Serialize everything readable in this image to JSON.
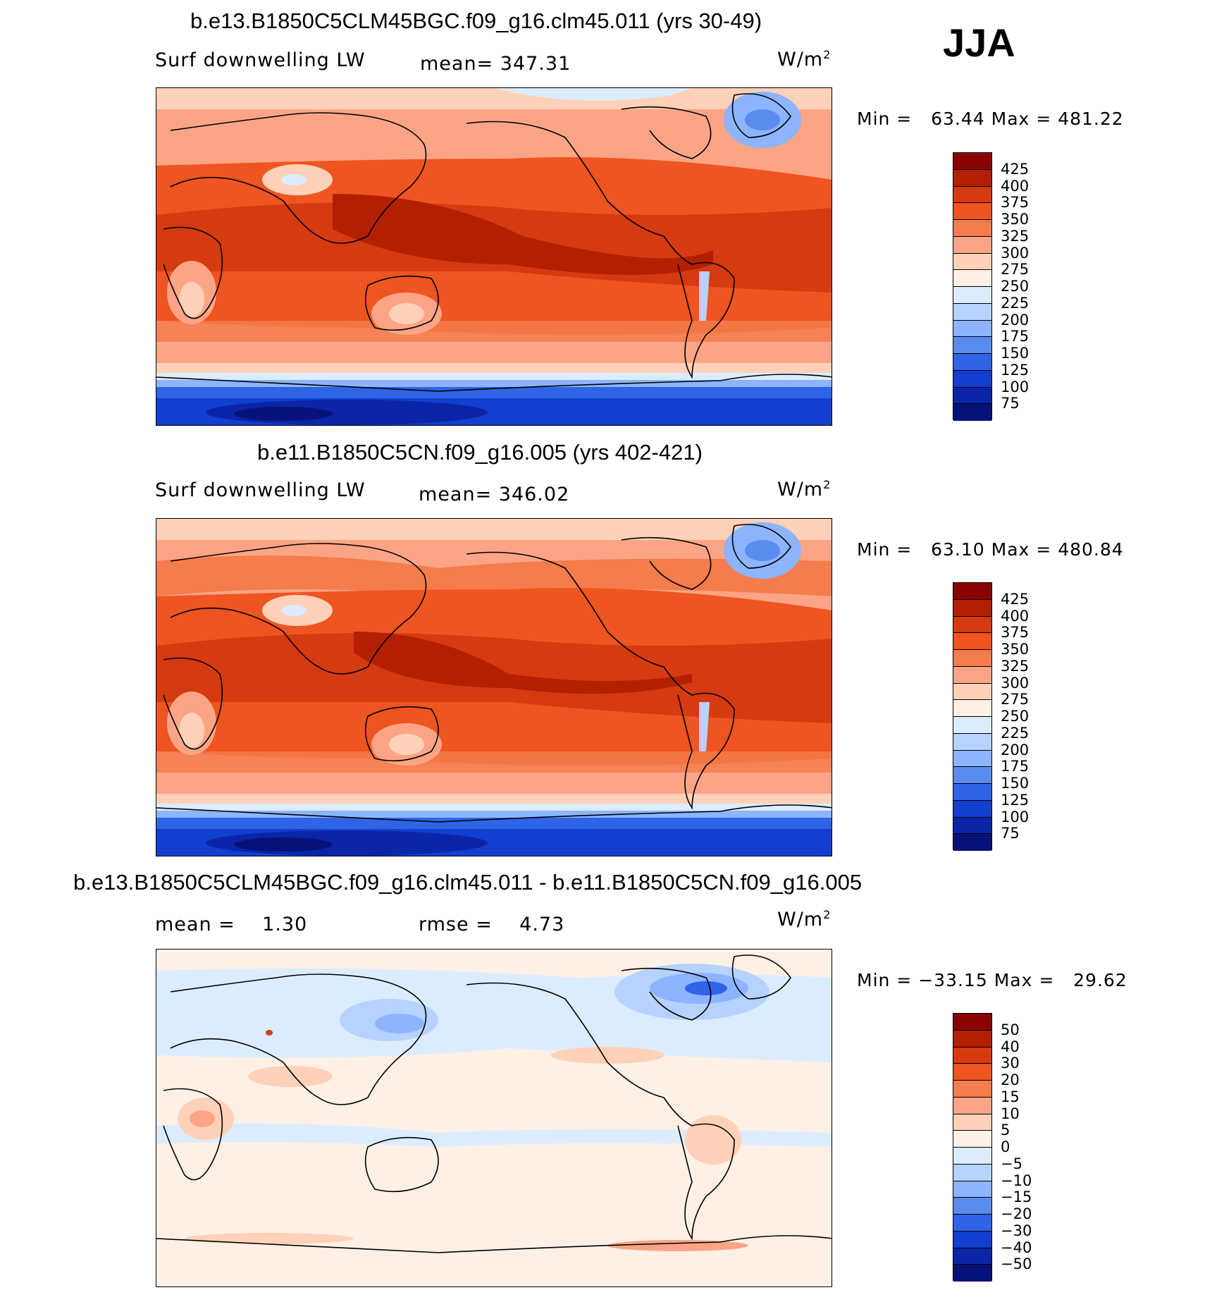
{
  "season": "JJA",
  "panels": [
    {
      "title": "b.e13.B1850C5CLM45BGC.f09_g16.clm45.011 (yrs 30-49)",
      "left_label": "Surf downwelling LW",
      "center_label": "mean= 347.31",
      "units_base": "W/m",
      "units_exp": "2",
      "min_label": "Min =",
      "min_value": "63.44",
      "max_label": "Max =",
      "max_value": "481.22",
      "colorbar": {
        "levels": [
          "425",
          "400",
          "375",
          "350",
          "325",
          "300",
          "275",
          "250",
          "225",
          "200",
          "175",
          "150",
          "125",
          "100",
          "75"
        ],
        "colors": [
          "#8b0000",
          "#b22000",
          "#d63a10",
          "#ee5520",
          "#f57c4c",
          "#fca586",
          "#ffd1b8",
          "#fff0e6",
          "#dcecff",
          "#b6d2ff",
          "#8cb4ff",
          "#5a8cf0",
          "#2f64e6",
          "#123fcf",
          "#0a25a8",
          "#06127a"
        ]
      }
    },
    {
      "title": "b.e11.B1850C5CN.f09_g16.005 (yrs 402-421)",
      "left_label": "Surf downwelling LW",
      "center_label": "mean= 346.02",
      "units_base": "W/m",
      "units_exp": "2",
      "min_label": "Min =",
      "min_value": "63.10",
      "max_label": "Max =",
      "max_value": "480.84",
      "colorbar": {
        "levels": [
          "425",
          "400",
          "375",
          "350",
          "325",
          "300",
          "275",
          "250",
          "225",
          "200",
          "175",
          "150",
          "125",
          "100",
          "75"
        ],
        "colors": [
          "#8b0000",
          "#b22000",
          "#d63a10",
          "#ee5520",
          "#f57c4c",
          "#fca586",
          "#ffd1b8",
          "#fff0e6",
          "#dcecff",
          "#b6d2ff",
          "#8cb4ff",
          "#5a8cf0",
          "#2f64e6",
          "#123fcf",
          "#0a25a8",
          "#06127a"
        ]
      }
    },
    {
      "title": "b.e13.B1850C5CLM45BGC.f09_g16.clm45.011 - b.e11.B1850C5CN.f09_g16.005",
      "left_label": "mean =    1.30",
      "center_label": "rmse =    4.73",
      "units_base": "W/m",
      "units_exp": "2",
      "min_label": "Min =",
      "min_value": "−33.15",
      "max_label": "Max =",
      "max_value": "29.62",
      "colorbar": {
        "levels": [
          "50",
          "40",
          "30",
          "20",
          "15",
          "10",
          "5",
          "0",
          "−5",
          "−10",
          "−15",
          "−20",
          "−30",
          "−40",
          "−50"
        ],
        "colors": [
          "#8b0000",
          "#b22000",
          "#d63a10",
          "#ee5520",
          "#f57c4c",
          "#fca586",
          "#ffd1b8",
          "#fff0e6",
          "#dcecff",
          "#b6d2ff",
          "#8cb4ff",
          "#5a8cf0",
          "#2f64e6",
          "#123fcf",
          "#0a25a8",
          "#06127a"
        ]
      }
    }
  ]
}
